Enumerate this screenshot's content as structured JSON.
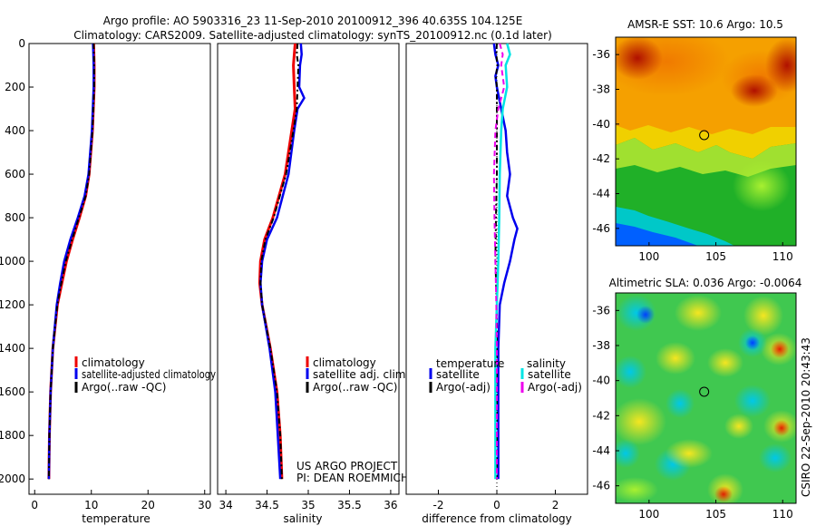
{
  "title": {
    "line1": "Argo profile: AO 5903316_23 11-Sep-2010 20100912_396 40.635S 104.125E",
    "line2": "Climatology: CARS2009. Satellite-adjusted climatology: synTS_20100912.nc (0.1d later)"
  },
  "depth_axis": {
    "ticks": [
      "0",
      "200",
      "400",
      "600",
      "800",
      "1000",
      "1200",
      "1400",
      "1600",
      "1800",
      "2000"
    ],
    "ylim": [
      2070,
      0
    ]
  },
  "credit": {
    "line1": "US ARGO PROJECT",
    "line2": "PI: DEAN ROEMMICH"
  },
  "timestamp": "CSIRO 22-Sep-2010 20:43:43",
  "colors": {
    "red": "#ee0000",
    "blue": "#0000ee",
    "black": "#000000",
    "cyan": "#00e5e5",
    "magenta": "#ee00ee"
  },
  "chart_data": [
    {
      "type": "line",
      "panel": "temperature",
      "xlabel": "temperature",
      "xlim": [
        -1,
        31
      ],
      "xticks": [
        "0",
        "10",
        "20",
        "30"
      ],
      "legend": [
        "climatology",
        "satellite-adjusted climatology",
        "Argo(..raw -QC)"
      ],
      "series": [
        {
          "name": "climatology",
          "color": "red",
          "width": 3,
          "dash": "",
          "depth": [
            0,
            100,
            200,
            400,
            600,
            700,
            800,
            900,
            1000,
            1100,
            1200,
            1400,
            1600,
            1800,
            2000
          ],
          "values": [
            10.4,
            10.5,
            10.5,
            10.2,
            9.6,
            9.0,
            7.9,
            6.7,
            5.6,
            4.8,
            4.0,
            3.2,
            2.8,
            2.6,
            2.5
          ]
        },
        {
          "name": "satellite-adjusted climatology",
          "color": "blue",
          "width": 2.5,
          "dash": "",
          "depth": [
            0,
            100,
            200,
            400,
            600,
            700,
            800,
            900,
            1000,
            1100,
            1200,
            1400,
            1600,
            1800,
            2000
          ],
          "values": [
            10.3,
            10.4,
            10.4,
            10.1,
            9.5,
            8.8,
            7.6,
            6.3,
            5.2,
            4.5,
            3.9,
            3.2,
            2.8,
            2.6,
            2.5
          ]
        },
        {
          "name": "Argo(..raw -QC)",
          "color": "black",
          "width": 2,
          "dash": "6,3,2,3",
          "depth": [
            0,
            100,
            200,
            400,
            600,
            700,
            800,
            900,
            1000,
            1100,
            1200,
            1400,
            1600,
            1800,
            2000
          ],
          "values": [
            10.4,
            10.5,
            10.5,
            10.2,
            9.6,
            9.0,
            7.8,
            6.6,
            5.5,
            4.7,
            4.0,
            3.2,
            2.8,
            2.6,
            2.5
          ]
        }
      ]
    },
    {
      "type": "line",
      "panel": "salinity",
      "xlabel": "salinity",
      "xlim": [
        33.9,
        36.1
      ],
      "xticks": [
        "34",
        "34.5",
        "35",
        "35.5",
        "36"
      ],
      "legend": [
        "climatology",
        "satellite adj. clim.",
        "Argo(..raw -QC)"
      ],
      "series": [
        {
          "name": "climatology",
          "color": "red",
          "width": 3,
          "dash": "",
          "depth": [
            0,
            100,
            200,
            300,
            400,
            600,
            800,
            900,
            1000,
            1100,
            1200,
            1400,
            1600,
            1800,
            2000
          ],
          "values": [
            34.84,
            34.82,
            34.83,
            34.84,
            34.8,
            34.72,
            34.57,
            34.47,
            34.42,
            34.41,
            34.44,
            34.54,
            34.62,
            34.66,
            34.68
          ]
        },
        {
          "name": "satellite adj. clim.",
          "color": "blue",
          "width": 2.5,
          "dash": "",
          "depth": [
            0,
            50,
            100,
            200,
            250,
            300,
            400,
            600,
            800,
            900,
            1000,
            1100,
            1200,
            1400,
            1600,
            1800,
            2000
          ],
          "values": [
            34.91,
            34.92,
            34.9,
            34.89,
            34.95,
            34.87,
            34.83,
            34.76,
            34.62,
            34.5,
            34.44,
            34.42,
            34.44,
            34.53,
            34.6,
            34.63,
            34.66
          ]
        },
        {
          "name": "Argo(..raw -QC)",
          "color": "black",
          "width": 2,
          "dash": "6,3,2,3",
          "depth": [
            0,
            50,
            100,
            200,
            300,
            400,
            600,
            800,
            900,
            1000,
            1100,
            1200,
            1400,
            1600,
            1800,
            2000
          ],
          "values": [
            34.87,
            34.86,
            34.88,
            34.87,
            34.86,
            34.82,
            34.73,
            34.58,
            34.48,
            34.43,
            34.42,
            34.44,
            34.54,
            34.62,
            34.66,
            34.68
          ]
        }
      ]
    },
    {
      "type": "line",
      "panel": "difference",
      "xlabel": "difference from climatology",
      "xlim": [
        -3.1,
        3.1
      ],
      "xticks": [
        "-2",
        "0",
        "2"
      ],
      "legend_temperature_title": "temperature",
      "legend_salinity_title": "salinity",
      "legend_temperature": [
        "satellite",
        "Argo(-adj)"
      ],
      "legend_salinity": [
        "satellite",
        "Argo(-adj)"
      ],
      "series": [
        {
          "name": "temperature satellite",
          "color": "blue",
          "width": 2.5,
          "dash": "",
          "depth": [
            0,
            50,
            100,
            150,
            200,
            300,
            400,
            500,
            600,
            700,
            800,
            850,
            900,
            1000,
            1100,
            1200,
            1400,
            1600,
            1800,
            2000
          ],
          "values": [
            -0.1,
            -0.05,
            0.05,
            -0.05,
            0.0,
            0.15,
            0.3,
            0.35,
            0.45,
            0.35,
            0.55,
            0.7,
            0.6,
            0.45,
            0.25,
            0.1,
            0.05,
            0.05,
            0.05,
            0.05
          ]
        },
        {
          "name": "temperature Argo(-adj)",
          "color": "black",
          "width": 2,
          "dash": "6,3,2,3",
          "depth": [
            0,
            50,
            100,
            150,
            200,
            300,
            400,
            600,
            800,
            1000,
            1200,
            1400,
            1600,
            1800,
            2000
          ],
          "values": [
            0.0,
            -0.02,
            0.02,
            -0.03,
            0.0,
            0.0,
            0.0,
            0.0,
            -0.03,
            -0.05,
            0.0,
            0.0,
            0.0,
            0.0,
            0.0
          ]
        },
        {
          "name": "salinity satellite",
          "color": "cyan",
          "width": 2.5,
          "dash": "",
          "depth": [
            0,
            50,
            100,
            200,
            300,
            400,
            600,
            800,
            1000,
            1200,
            1400,
            1600,
            1800,
            2000
          ],
          "values": [
            0.35,
            0.45,
            0.3,
            0.35,
            0.2,
            0.15,
            0.1,
            0.08,
            0.05,
            0.0,
            -0.05,
            -0.05,
            -0.05,
            -0.05
          ]
        },
        {
          "name": "salinity Argo(-adj)",
          "color": "magenta",
          "width": 2,
          "dash": "6,4",
          "depth": [
            0,
            50,
            100,
            200,
            300,
            400,
            600,
            800,
            1000,
            1200,
            1400,
            1600,
            1800,
            2000
          ],
          "values": [
            0.1,
            0.2,
            0.15,
            0.25,
            0.05,
            -0.05,
            -0.1,
            -0.08,
            -0.05,
            -0.02,
            0.0,
            0.0,
            0.0,
            0.0
          ]
        }
      ]
    },
    {
      "type": "heatmap",
      "panel": "sst-map",
      "title": "AMSR-E SST: 10.6  Argo: 10.5",
      "xlim": [
        97.5,
        111
      ],
      "ylim": [
        -47,
        -35
      ],
      "xticks": [
        "100",
        "105",
        "110"
      ],
      "yticks": [
        "-36",
        "-38",
        "-40",
        "-42",
        "-44",
        "-46"
      ],
      "marker": {
        "lon": 104.125,
        "lat": -40.635
      }
    },
    {
      "type": "heatmap",
      "panel": "sla-map",
      "title": "Altimetric SLA: 0.036  Argo: -0.0064",
      "xlim": [
        97.5,
        111
      ],
      "ylim": [
        -47,
        -35
      ],
      "xticks": [
        "100",
        "105",
        "110"
      ],
      "yticks": [
        "-36",
        "-38",
        "-40",
        "-42",
        "-44",
        "-46"
      ],
      "marker": {
        "lon": 104.125,
        "lat": -40.635
      }
    }
  ]
}
